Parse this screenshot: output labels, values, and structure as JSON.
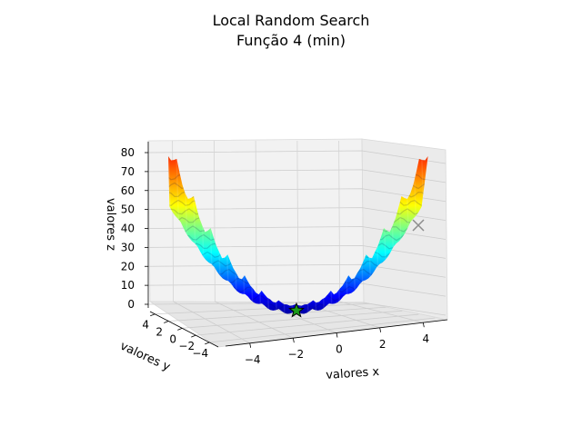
{
  "chart_data": {
    "type": "surface3d",
    "title": "Local Random Search",
    "subtitle": "Função 4 (min)",
    "xlabel": "valores x",
    "ylabel": "valores y",
    "zlabel": "valores z",
    "x_ticks": [
      "−4",
      "−2",
      "0",
      "2",
      "4"
    ],
    "y_ticks": [
      "4",
      "2",
      "0",
      "−2",
      "−4"
    ],
    "z_ticks": [
      "0",
      "10",
      "20",
      "30",
      "40",
      "50",
      "60",
      "70",
      "80"
    ],
    "xlim": [
      -5.12,
      5.12
    ],
    "ylim": [
      -5.12,
      5.12
    ],
    "zlim": [
      0,
      80
    ],
    "colormap": "jet",
    "markers": [
      {
        "name": "optimum-star",
        "x": 0,
        "y": 0,
        "z": 0,
        "shape": "star",
        "color": "#1a9a1a"
      },
      {
        "name": "search-point-x",
        "x": 5.0,
        "y": 4.5,
        "z": 43,
        "shape": "x",
        "color": "#8c8c8c"
      }
    ]
  }
}
